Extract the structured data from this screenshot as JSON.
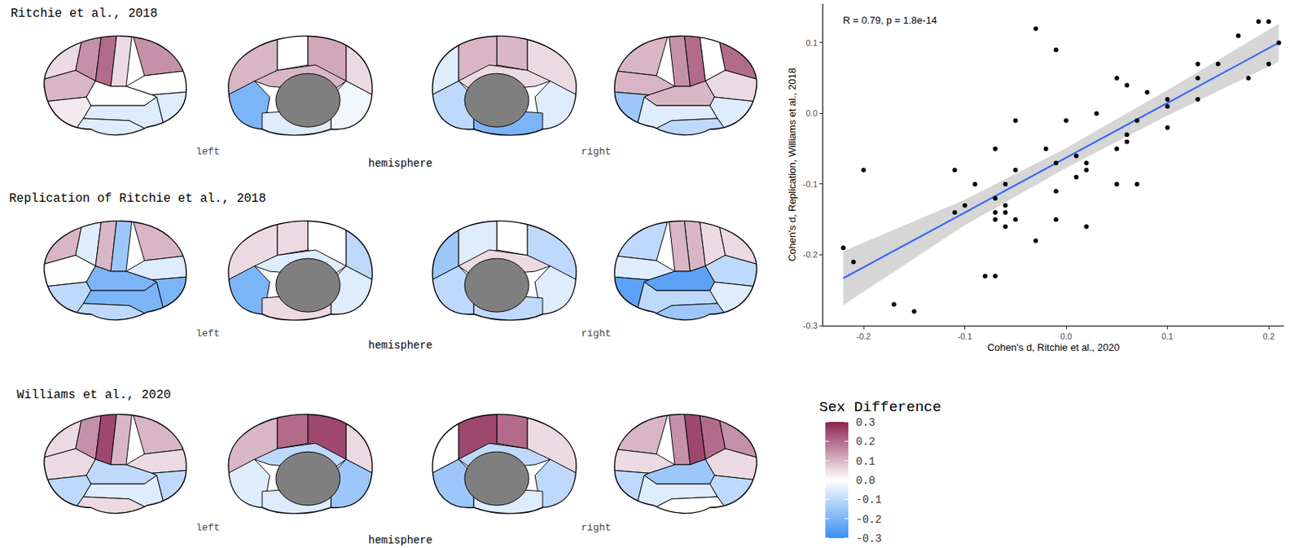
{
  "chart_data": {
    "type": "scatter",
    "annotation": "R = 0.79, p = 1.8e-14",
    "x_label": "Cohen's d, Ritchie et al., 2020",
    "y_label": "Cohen's d, Replication, Williams et al., 2018",
    "x": [
      -0.22,
      -0.21,
      -0.2,
      -0.17,
      -0.15,
      -0.11,
      -0.11,
      -0.1,
      -0.09,
      -0.08,
      -0.07,
      -0.07,
      -0.07,
      -0.07,
      -0.07,
      -0.06,
      -0.06,
      -0.06,
      -0.06,
      -0.05,
      -0.05,
      -0.05,
      -0.03,
      -0.03,
      -0.02,
      -0.01,
      -0.01,
      -0.01,
      -0.01,
      0.0,
      0.01,
      0.01,
      0.02,
      0.02,
      0.02,
      0.03,
      0.05,
      0.05,
      0.05,
      0.06,
      0.06,
      0.06,
      0.07,
      0.07,
      0.08,
      0.1,
      0.1,
      0.1,
      0.13,
      0.13,
      0.13,
      0.15,
      0.17,
      0.18,
      0.19,
      0.2,
      0.2,
      0.21
    ],
    "values": [
      -0.19,
      -0.21,
      -0.08,
      -0.27,
      -0.28,
      -0.08,
      -0.14,
      -0.13,
      -0.1,
      -0.23,
      -0.23,
      -0.05,
      -0.12,
      -0.14,
      -0.15,
      -0.1,
      -0.13,
      -0.14,
      -0.16,
      -0.01,
      -0.08,
      -0.15,
      -0.18,
      0.12,
      -0.05,
      0.09,
      -0.07,
      -0.11,
      -0.15,
      -0.01,
      -0.06,
      -0.09,
      -0.07,
      -0.08,
      -0.16,
      0.0,
      0.05,
      -0.05,
      -0.1,
      0.04,
      -0.03,
      -0.04,
      -0.01,
      -0.1,
      0.03,
      0.02,
      0.01,
      -0.02,
      0.07,
      0.05,
      0.02,
      0.07,
      0.11,
      0.05,
      0.13,
      0.13,
      0.07,
      0.1
    ],
    "color": "#000000",
    "fit": {
      "x": [
        -0.22,
        -0.1,
        0,
        0.1,
        0.21
      ],
      "values": [
        -0.233,
        -0.14,
        -0.063,
        0.015,
        0.1
      ],
      "lower": [
        -0.271,
        -0.158,
        -0.077,
        -0.003,
        0.073
      ],
      "upper": [
        -0.195,
        -0.122,
        -0.049,
        0.033,
        0.127
      ],
      "color": "#3366ff"
    },
    "xlim": [
      -0.24,
      0.215
    ],
    "ylim": [
      -0.3,
      0.155
    ],
    "xticks": [
      -0.2,
      -0.1,
      {
        "value": 0,
        "label": "0.0"
      },
      0.1,
      0.2
    ],
    "yticks": [
      -0.3,
      -0.2,
      -0.1,
      {
        "value": 0,
        "label": "0.0"
      },
      0.1
    ],
    "grid": false
  },
  "brain_panels": {
    "left_label": "left",
    "right_label": "right",
    "hemisphere_label": "hemisphere",
    "rows": [
      {
        "title": "Ritchie et al., 2018",
        "views": [
          [
            0.05,
            0.15,
            0.2,
            0.05,
            0.15,
            0.0,
            -0.05,
            0.1,
            0.0,
            -0.05,
            -0.05,
            0.03
          ],
          [
            0.1,
            0.0,
            0.12,
            0.05,
            -0.02,
            0.1,
            -0.2,
            -0.05
          ],
          [
            0.05,
            0.1,
            0.1,
            -0.05,
            -0.1,
            0.05,
            -0.05,
            -0.2
          ],
          [
            0.2,
            0.0,
            0.2,
            0.15,
            0.1,
            0.1,
            -0.15,
            0.05,
            0.1,
            -0.05,
            -0.1,
            -0.05
          ]
        ]
      },
      {
        "title": "Replication of Ritchie et al., 2018",
        "views": [
          [
            0.1,
            -0.05,
            0.1,
            -0.15,
            0.1,
            -0.05,
            -0.2,
            0.0,
            -0.2,
            -0.2,
            -0.1,
            -0.1
          ],
          [
            0.05,
            0.05,
            0.0,
            -0.1,
            -0.05,
            -0.05,
            -0.2,
            0.05
          ],
          [
            -0.1,
            0.0,
            -0.05,
            -0.15,
            -0.1,
            0.05,
            -0.05,
            -0.1
          ],
          [
            0.05,
            0.05,
            0.1,
            0.1,
            -0.1,
            -0.05,
            -0.25,
            -0.1,
            -0.25,
            -0.1,
            -0.15,
            -0.05
          ]
        ]
      },
      {
        "title": "Williams et al., 2020",
        "views": [
          [
            0.05,
            0.15,
            0.25,
            0.1,
            0.1,
            0.05,
            -0.1,
            0.05,
            -0.1,
            -0.05,
            0.05,
            -0.1
          ],
          [
            0.1,
            0.2,
            0.25,
            0.05,
            -0.15,
            -0.1,
            -0.05,
            -0.05
          ],
          [
            0.05,
            0.2,
            0.25,
            0.0,
            -0.15,
            -0.1,
            -0.1,
            -0.05
          ],
          [
            0.15,
            0.2,
            0.25,
            0.15,
            0.1,
            0.05,
            -0.1,
            0.05,
            -0.15,
            -0.05,
            0.0,
            -0.1
          ]
        ]
      }
    ]
  },
  "legend_bar": {
    "title": "Sex Difference",
    "range": [
      -0.3,
      0.3
    ],
    "ticks": [
      0.3,
      0.2,
      0.1,
      {
        "value": 0,
        "label": "0.0"
      },
      -0.1,
      -0.2,
      -0.3
    ],
    "colorscale": [
      [
        -0.3,
        "#3b8ef4"
      ],
      [
        0,
        "#ffffff"
      ],
      [
        0.3,
        "#8b2350"
      ]
    ]
  }
}
